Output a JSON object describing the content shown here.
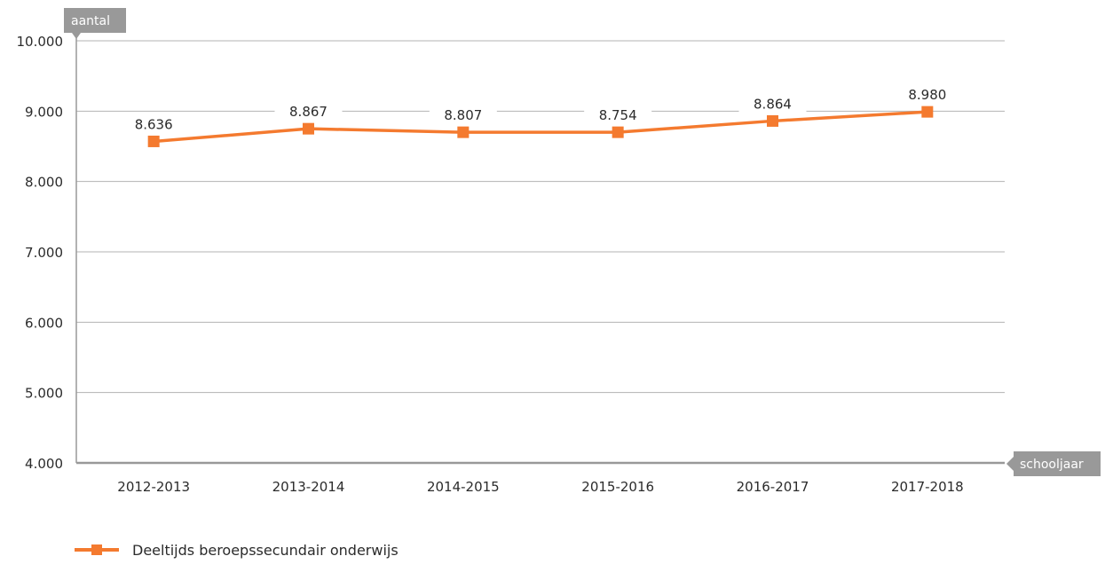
{
  "chart_data": {
    "type": "line",
    "ylabel": "aantal",
    "xlabel": "schooljaar",
    "categories": [
      "2012-2013",
      "2013-2014",
      "2014-2015",
      "2015-2016",
      "2016-2017",
      "2017-2018"
    ],
    "series": [
      {
        "name": "Deeltijds beroepssecundair onderwijs",
        "values": [
          8636,
          8867,
          8807,
          8754,
          8864,
          8980
        ],
        "labels": [
          "8.636",
          "8.867",
          "8.807",
          "8.754",
          "8.864",
          "8.980"
        ],
        "plotted_values": [
          8570,
          8750,
          8700,
          8700,
          8860,
          8990
        ],
        "color": "#f47a2f"
      }
    ],
    "ylim": [
      4000,
      10000
    ],
    "yticks": [
      4000,
      5000,
      6000,
      7000,
      8000,
      9000,
      10000
    ],
    "ytick_labels": [
      "4.000",
      "5.000",
      "6.000",
      "7.000",
      "8.000",
      "9.000",
      "10.000"
    ],
    "grid": true,
    "legend": "bottom-left",
    "colors": {
      "grid": "#b3b3b3",
      "axis": "#999999",
      "tag": "#999999",
      "text": "#2b2b2b"
    }
  }
}
